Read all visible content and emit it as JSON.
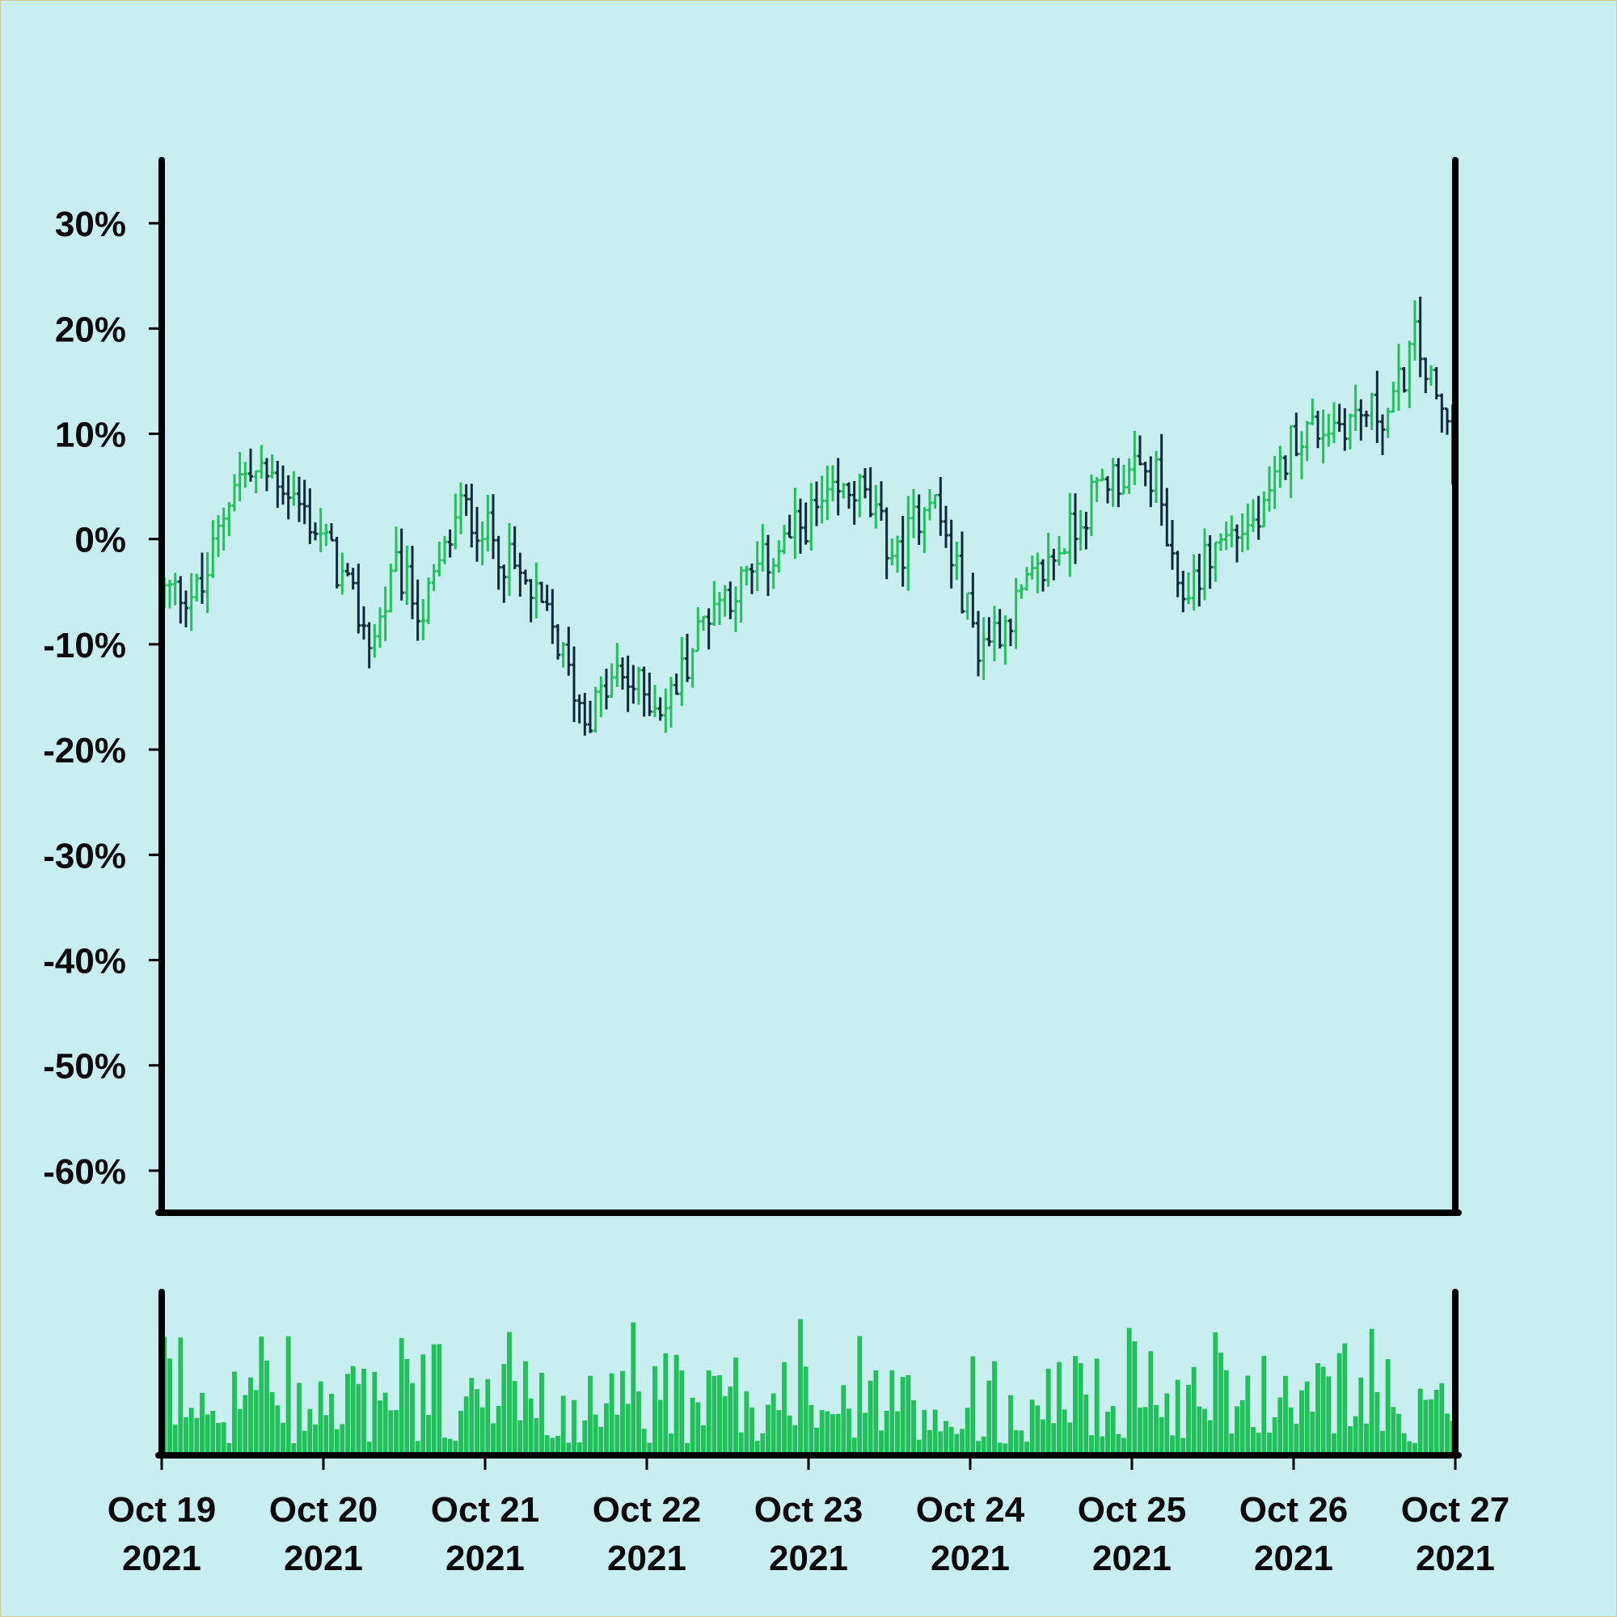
{
  "colors": {
    "background": "#c9eef0",
    "up": "#22c05a",
    "down": "#0f2a3c",
    "volume": "#22c05a",
    "axis": "#000000",
    "text": "#0a0a0a"
  },
  "chart_data": {
    "type": "ohlc",
    "title": "",
    "xlabel": "",
    "ylabel": "",
    "y_ticks": [
      "30%",
      "20%",
      "10%",
      "0%",
      "-10%",
      "-20%",
      "-30%",
      "-40%",
      "-50%",
      "-60%"
    ],
    "y_tick_values": [
      30,
      20,
      10,
      0,
      -10,
      -20,
      -30,
      -40,
      -50,
      -60
    ],
    "ylim": [
      -64,
      36
    ],
    "x_ticks": [
      {
        "line1": "Oct 19",
        "line2": "2021",
        "day": 0
      },
      {
        "line1": "Oct 20",
        "line2": "2021",
        "day": 1
      },
      {
        "line1": "Oct 21",
        "line2": "2021",
        "day": 2
      },
      {
        "line1": "Oct 22",
        "line2": "2021",
        "day": 3
      },
      {
        "line1": "Oct 23",
        "line2": "2021",
        "day": 4
      },
      {
        "line1": "Oct 24",
        "line2": "2021",
        "day": 5
      },
      {
        "line1": "Oct 25",
        "line2": "2021",
        "day": 6
      },
      {
        "line1": "Oct 26",
        "line2": "2021",
        "day": 7
      },
      {
        "line1": "Oct 27",
        "line2": "2021",
        "day": 8
      }
    ],
    "xlim_days": [
      0,
      8
    ],
    "grid": false,
    "legend": "none",
    "price_path": [
      {
        "day": 0.0,
        "value": -5
      },
      {
        "day": 0.25,
        "value": -5
      },
      {
        "day": 0.45,
        "value": 6
      },
      {
        "day": 0.72,
        "value": 6
      },
      {
        "day": 1.0,
        "value": 0
      },
      {
        "day": 1.3,
        "value": -10
      },
      {
        "day": 1.45,
        "value": -3
      },
      {
        "day": 1.62,
        "value": -7
      },
      {
        "day": 1.85,
        "value": 3
      },
      {
        "day": 2.0,
        "value": 1
      },
      {
        "day": 2.4,
        "value": -8
      },
      {
        "day": 2.62,
        "value": -17
      },
      {
        "day": 2.82,
        "value": -13
      },
      {
        "day": 3.12,
        "value": -16
      },
      {
        "day": 3.4,
        "value": -6
      },
      {
        "day": 3.62,
        "value": -4
      },
      {
        "day": 4.0,
        "value": 2
      },
      {
        "day": 4.3,
        "value": 5
      },
      {
        "day": 4.55,
        "value": -2
      },
      {
        "day": 4.75,
        "value": 5
      },
      {
        "day": 5.05,
        "value": -10
      },
      {
        "day": 5.2,
        "value": -8
      },
      {
        "day": 5.5,
        "value": -2
      },
      {
        "day": 5.85,
        "value": 6
      },
      {
        "day": 6.15,
        "value": 6
      },
      {
        "day": 6.28,
        "value": -6
      },
      {
        "day": 6.55,
        "value": 0
      },
      {
        "day": 6.82,
        "value": 2
      },
      {
        "day": 7.0,
        "value": 10
      },
      {
        "day": 7.25,
        "value": 11
      },
      {
        "day": 7.45,
        "value": 12
      },
      {
        "day": 7.6,
        "value": 12
      },
      {
        "day": 7.75,
        "value": 19
      },
      {
        "day": 7.88,
        "value": 13
      },
      {
        "day": 8.0,
        "value": 9
      }
    ],
    "bars_per_day": 30,
    "volume_max": 100
  }
}
